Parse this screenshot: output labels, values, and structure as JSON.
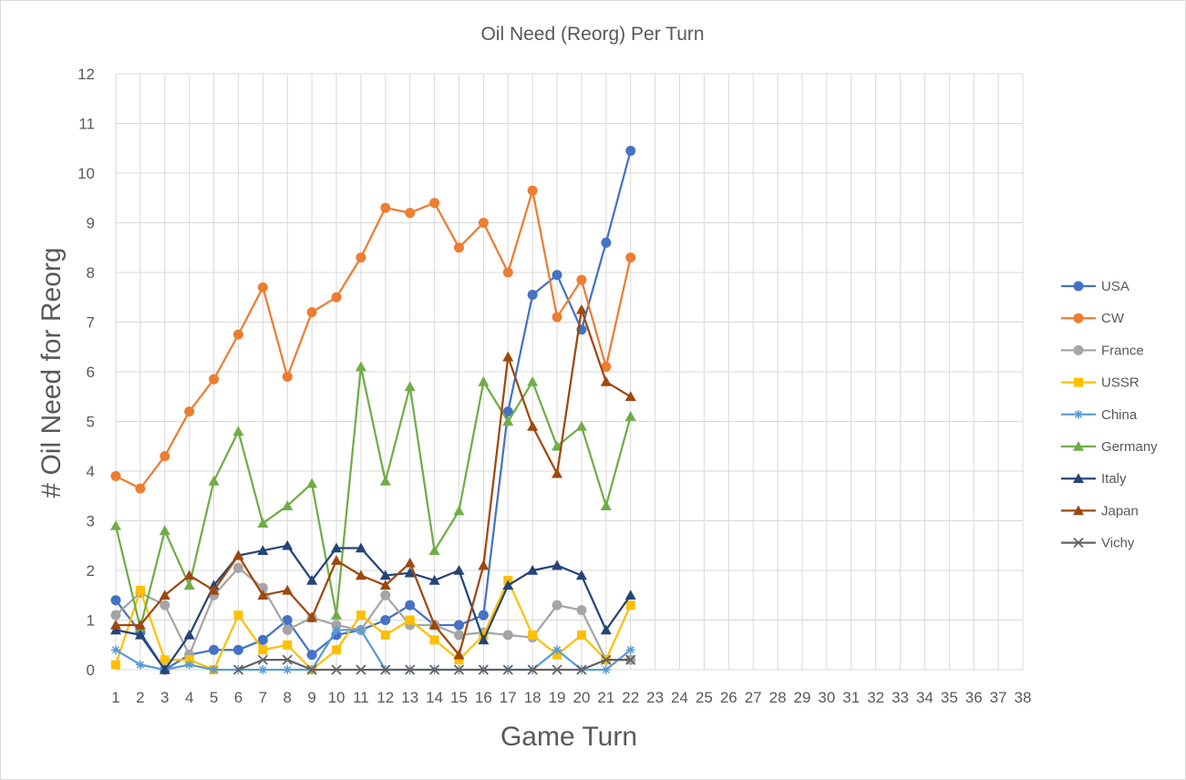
{
  "chart_data": {
    "type": "line",
    "title": "Oil Need (Reorg) Per Turn",
    "xlabel": "Game Turn",
    "ylabel": "# Oil Need for Reorg",
    "x": [
      1,
      2,
      3,
      4,
      5,
      6,
      7,
      8,
      9,
      10,
      11,
      12,
      13,
      14,
      15,
      16,
      17,
      18,
      19,
      20,
      21,
      22
    ],
    "x_ticks": [
      "1",
      "2",
      "3",
      "4",
      "5",
      "6",
      "7",
      "8",
      "9",
      "10",
      "11",
      "12",
      "13",
      "14",
      "15",
      "16",
      "17",
      "18",
      "19",
      "20",
      "21",
      "22",
      "23",
      "24",
      "25",
      "26",
      "27",
      "28",
      "29",
      "30",
      "31",
      "32",
      "33",
      "34",
      "35",
      "36",
      "37",
      "38"
    ],
    "xlim": [
      1,
      38
    ],
    "y_ticks": [
      "0",
      "1",
      "2",
      "3",
      "4",
      "5",
      "6",
      "7",
      "8",
      "9",
      "10",
      "11",
      "12"
    ],
    "ylim": [
      0,
      12
    ],
    "grid": true,
    "legend_position": "right",
    "series": [
      {
        "name": "USA",
        "color": "#4472C4",
        "marker": "circle",
        "values": [
          1.4,
          0.75,
          0,
          0.3,
          0.4,
          0.4,
          0.6,
          1.0,
          0.3,
          0.7,
          0.8,
          1.0,
          1.3,
          0.9,
          0.9,
          1.1,
          5.2,
          7.55,
          7.95,
          6.85,
          8.6,
          10.45
        ]
      },
      {
        "name": "CW",
        "color": "#ED7D31",
        "marker": "circle",
        "values": [
          3.9,
          3.65,
          4.3,
          5.2,
          5.85,
          6.75,
          7.7,
          5.9,
          7.2,
          7.5,
          8.3,
          9.3,
          9.2,
          9.4,
          8.5,
          9.0,
          8.0,
          9.65,
          7.1,
          7.85,
          6.1,
          8.3
        ]
      },
      {
        "name": "France",
        "color": "#A5A5A5",
        "marker": "circle",
        "values": [
          1.1,
          1.55,
          1.3,
          0.3,
          1.5,
          2.05,
          1.65,
          0.8,
          1.05,
          0.9,
          0.8,
          1.5,
          0.9,
          0.9,
          0.7,
          0.75,
          0.7,
          0.65,
          1.3,
          1.2,
          0.2,
          0.2
        ]
      },
      {
        "name": "USSR",
        "color": "#FFC000",
        "marker": "square",
        "values": [
          0.1,
          1.6,
          0.2,
          0.2,
          0.0,
          1.1,
          0.4,
          0.5,
          0.0,
          0.4,
          1.1,
          0.7,
          1.0,
          0.6,
          0.2,
          0.7,
          1.8,
          0.7,
          0.3,
          0.7,
          0.2,
          1.3
        ]
      },
      {
        "name": "China",
        "color": "#5B9BD5",
        "marker": "star",
        "values": [
          0.4,
          0.1,
          0.0,
          0.1,
          0.0,
          0.0,
          0.0,
          0.0,
          0.0,
          0.8,
          0.8,
          0.0,
          0.0,
          0.0,
          0.0,
          0.0,
          0.0,
          0.0,
          0.4,
          0.0,
          0.0,
          0.4
        ]
      },
      {
        "name": "Germany",
        "color": "#70AD47",
        "marker": "triangle",
        "values": [
          2.9,
          0.85,
          2.8,
          1.7,
          3.8,
          4.8,
          2.95,
          3.3,
          3.75,
          1.1,
          6.1,
          3.8,
          5.7,
          2.4,
          3.2,
          5.8,
          5.0,
          5.8,
          4.5,
          4.9,
          3.3,
          5.1
        ]
      },
      {
        "name": "Italy",
        "color": "#264478",
        "marker": "triangle",
        "values": [
          0.8,
          0.7,
          0.0,
          0.7,
          1.7,
          2.3,
          2.4,
          2.5,
          1.8,
          2.45,
          2.45,
          1.9,
          1.95,
          1.8,
          2.0,
          0.6,
          1.7,
          2.0,
          2.1,
          1.9,
          0.8,
          1.5
        ]
      },
      {
        "name": "Japan",
        "color": "#9E480E",
        "marker": "triangle",
        "values": [
          0.9,
          0.9,
          1.5,
          1.9,
          1.6,
          2.3,
          1.5,
          1.6,
          1.05,
          2.2,
          1.9,
          1.7,
          2.15,
          0.9,
          0.3,
          2.1,
          6.3,
          4.9,
          3.95,
          7.25,
          5.8,
          5.5
        ]
      },
      {
        "name": "Vichy",
        "color": "#636363",
        "marker": "x",
        "values": [
          null,
          null,
          null,
          null,
          null,
          0.0,
          0.2,
          0.2,
          0.0,
          0.0,
          0.0,
          0.0,
          0.0,
          0.0,
          0.0,
          0.0,
          0.0,
          0.0,
          0.0,
          0.0,
          0.2,
          0.2
        ]
      }
    ]
  }
}
